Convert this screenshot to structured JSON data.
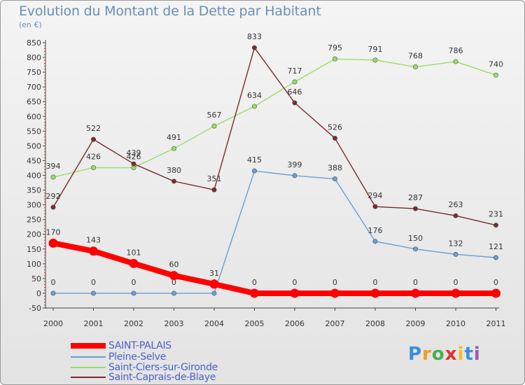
{
  "title": "Evolution du Montant de la Dette par Habitant",
  "subtitle": "(en €)",
  "logo": {
    "text": "Proxiti",
    "colors": [
      "#3a8fd8",
      "#f0a020",
      "#4ab04a",
      "#e03030",
      "#f0c020",
      "#3a8fd8",
      "#9b59b6"
    ]
  },
  "chart_data": {
    "type": "line",
    "x": [
      "2000",
      "2001",
      "2002",
      "2003",
      "2004",
      "2005",
      "2006",
      "2007",
      "2008",
      "2009",
      "2010",
      "2011"
    ],
    "ylim": [
      -50,
      850
    ],
    "yticks": [
      -50,
      0,
      50,
      100,
      150,
      200,
      250,
      300,
      350,
      400,
      450,
      500,
      550,
      600,
      650,
      700,
      750,
      800,
      850
    ],
    "grid": false,
    "legend_position": "bottom-left",
    "series": [
      {
        "name": "SAINT-PALAIS",
        "color": "#ff0000",
        "values": [
          170,
          143,
          101,
          60,
          31,
          0,
          0,
          0,
          0,
          0,
          0,
          0
        ]
      },
      {
        "name": "Pleine-Selve",
        "color": "#6a9fd0",
        "values": [
          0,
          0,
          0,
          0,
          0,
          415,
          399,
          388,
          176,
          150,
          132,
          121
        ]
      },
      {
        "name": "Saint-Ciers-sur-Gironde",
        "color": "#99dd66",
        "values": [
          394,
          426,
          426,
          491,
          567,
          634,
          717,
          795,
          791,
          768,
          786,
          740
        ]
      },
      {
        "name": "Saint-Caprais-de-Blaye",
        "color": "#7a2a2a",
        "values": [
          292,
          522,
          439,
          380,
          351,
          833,
          646,
          526,
          294,
          287,
          263,
          231
        ]
      }
    ]
  }
}
